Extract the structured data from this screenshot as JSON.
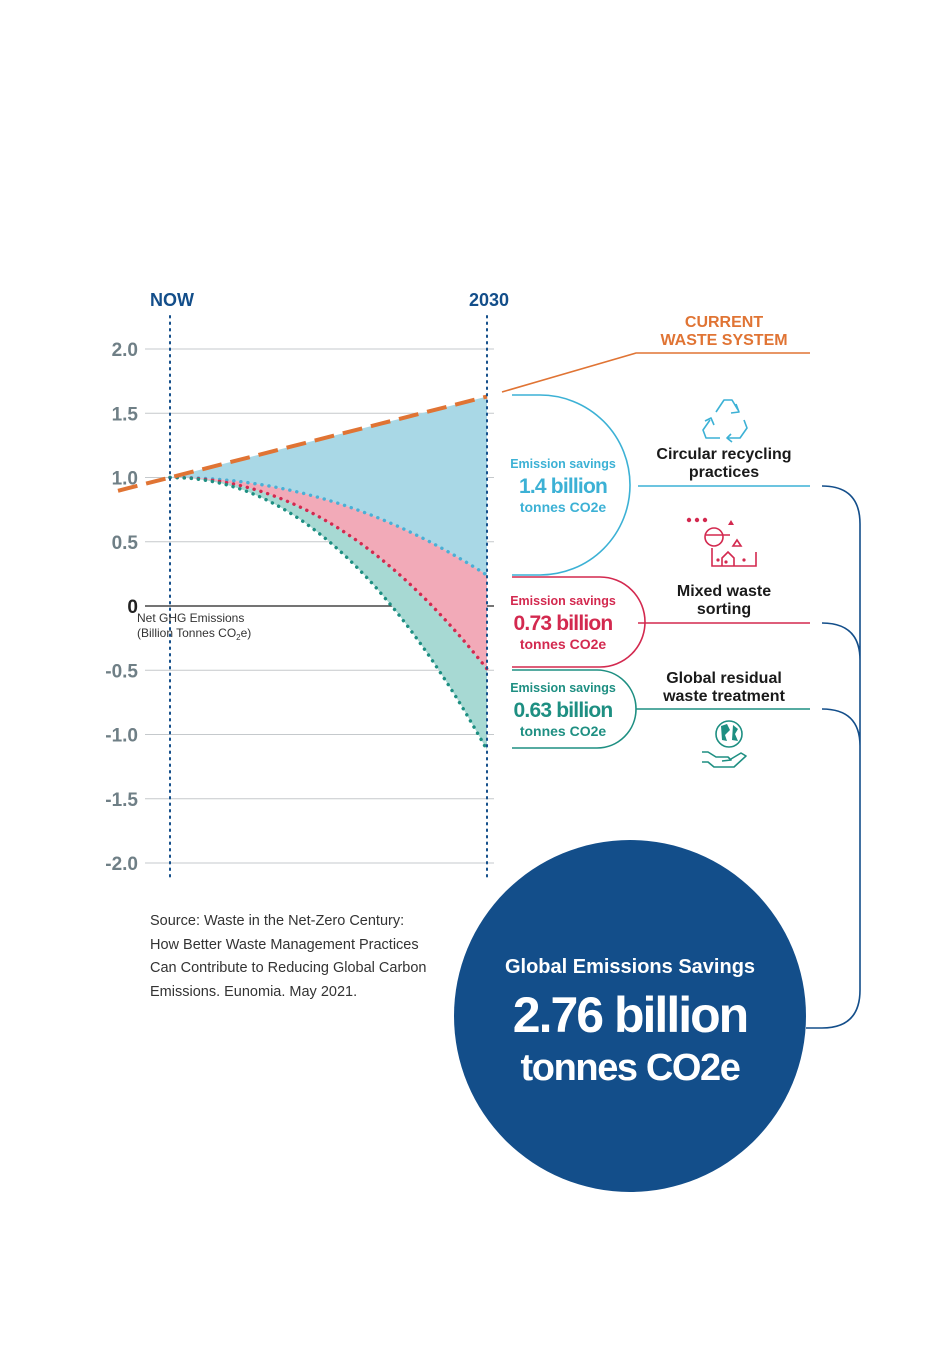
{
  "chart_data": {
    "type": "area",
    "x_labels": [
      "NOW",
      "2030"
    ],
    "ylim": [
      -2.0,
      2.0
    ],
    "y_ticks": [
      "2.0",
      "1.5",
      "1.0",
      "0.5",
      "0",
      "-0.5",
      "-1.0",
      "-1.5",
      "-2.0"
    ],
    "y_tick_values": [
      2.0,
      1.5,
      1.0,
      0.5,
      0,
      -0.5,
      -1.0,
      -1.5,
      -2.0
    ],
    "ylabel_line1": "Net GHG Emissions",
    "ylabel_line2_prefix": "(Billion Tonnes CO",
    "ylabel_sub": "2",
    "ylabel_line2_suffix": "e)",
    "grid": true,
    "current_system": {
      "label_line1": "CURRENT",
      "label_line2": "WASTE SYSTEM",
      "start": 1.0,
      "end": 1.63,
      "color": "#e07434"
    },
    "series": [
      {
        "name": "Circular recycling practices",
        "start": 1.0,
        "end": 0.24,
        "color": "#4aafd5",
        "fill": "#a9d8e6"
      },
      {
        "name": "Mixed waste sorting",
        "start": 1.0,
        "end": -0.49,
        "color": "#d3294f",
        "fill": "#f2aab8"
      },
      {
        "name": "Global residual waste treatment",
        "start": 1.0,
        "end": -1.12,
        "color": "#1e8f82",
        "fill": "#a7d9d3"
      }
    ],
    "savings": [
      {
        "label": "Emission savings",
        "value": "1.4 billion",
        "unit": "tonnes CO2e",
        "color": "#3cb1d5"
      },
      {
        "label": "Emission savings",
        "value": "0.73 billion",
        "unit": "tonnes CO2e",
        "color": "#d3294f"
      },
      {
        "label": "Emission savings",
        "value": "0.63 billion",
        "unit": "tonnes CO2e",
        "color": "#1e8f82"
      }
    ],
    "practices": [
      {
        "line1": "Circular recycling",
        "line2": "practices",
        "icon": "recycle-icon",
        "color": "#3cb1d5"
      },
      {
        "line1": "Mixed waste",
        "line2": "sorting",
        "icon": "sorting-icon",
        "color": "#d3294f"
      },
      {
        "line1": "Global residual",
        "line2": "waste treatment",
        "icon": "globe-hand-icon",
        "color": "#1e8f82"
      }
    ],
    "total": {
      "title": "Global Emissions Savings",
      "value": "2.76 billion",
      "unit": "tonnes CO2e",
      "color": "#134e8a"
    }
  },
  "source": {
    "lines": [
      "Source: Waste in the Net-Zero Century:",
      "How Better Waste Management Practices",
      "Can Contribute to Reducing Global Carbon",
      "Emissions. Eunomia. May 2021."
    ]
  },
  "colors": {
    "axis_text": "#6f7f86",
    "navy": "#134e8a",
    "grid": "#c5c9cc"
  }
}
